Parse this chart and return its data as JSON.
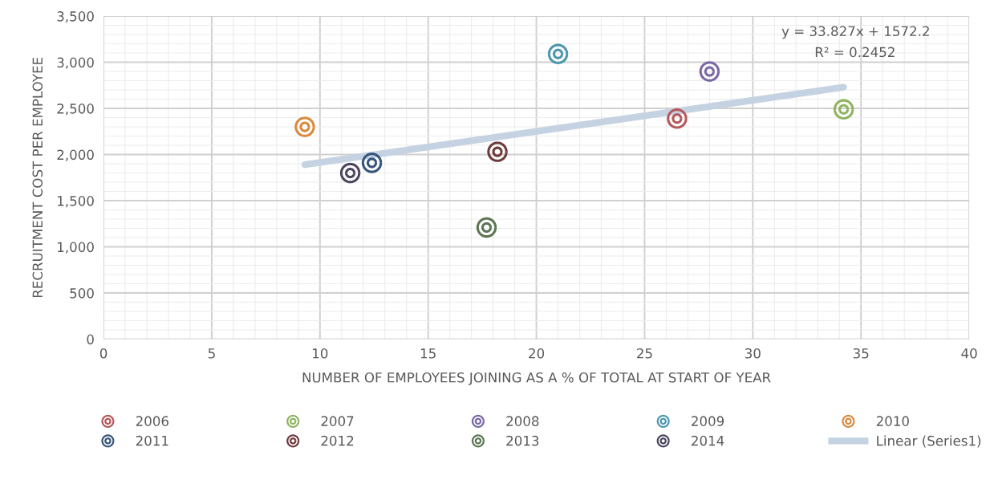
{
  "chart_data": {
    "type": "scatter",
    "xlabel": "NUMBER OF EMPLOYEES JOINING AS A % OF TOTAL AT START OF YEAR",
    "ylabel": "RECRUITMENT COST PER EMPLOYEE",
    "series": [
      {
        "name": "2006",
        "color": "#b5575a",
        "x": [
          26.5
        ],
        "values": [
          2390
        ]
      },
      {
        "name": "2007",
        "color": "#8fb35e",
        "x": [
          34.2
        ],
        "values": [
          2490
        ]
      },
      {
        "name": "2008",
        "color": "#7a68a6",
        "x": [
          28.0
        ],
        "values": [
          2900
        ]
      },
      {
        "name": "2009",
        "color": "#4a97ae",
        "x": [
          21.0
        ],
        "values": [
          3090
        ]
      },
      {
        "name": "2010",
        "color": "#d98a3e",
        "x": [
          9.3
        ],
        "values": [
          2300
        ]
      },
      {
        "name": "2011",
        "color": "#36557a",
        "x": [
          12.4
        ],
        "values": [
          1910
        ]
      },
      {
        "name": "2012",
        "color": "#6e3a3c",
        "x": [
          18.2
        ],
        "values": [
          2030
        ]
      },
      {
        "name": "2013",
        "color": "#5d7552",
        "x": [
          17.7
        ],
        "values": [
          1210
        ]
      },
      {
        "name": "2014",
        "color": "#4a4560",
        "x": [
          11.4
        ],
        "values": [
          1800
        ]
      },
      {
        "name": "Linear (Series1)",
        "type": "line",
        "color": "#c5d2e2",
        "x": [
          9.3,
          34.2
        ],
        "values": [
          1890,
          2730
        ],
        "marker": "none"
      }
    ],
    "marker": "circle",
    "xlim": [
      0,
      40
    ],
    "xticks": [
      0,
      5,
      10,
      15,
      20,
      25,
      30,
      35,
      40
    ],
    "ylim": [
      0,
      3500
    ],
    "yticks": [
      0,
      500,
      {
        "value": 1000,
        "label": "1,000"
      },
      {
        "value": 1500,
        "label": "1,500"
      },
      {
        "value": 2000,
        "label": "2,000"
      },
      {
        "value": 2500,
        "label": "2,500"
      },
      {
        "value": 3000,
        "label": "3,000"
      },
      {
        "value": 3500,
        "label": "3,500"
      }
    ],
    "grid": true,
    "legend": "bottom",
    "annotations": [
      "y = 33.827x + 1572.2",
      "R² = 0.2452"
    ]
  }
}
